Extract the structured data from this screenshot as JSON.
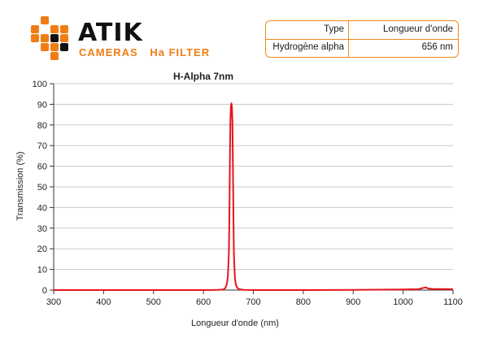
{
  "brand": {
    "name": "ATIK",
    "tagline": "CAMERAS",
    "product": "Ha FILTER",
    "accent_color": "#f07d13",
    "dark_color": "#111111"
  },
  "spec_table": {
    "headers": [
      "Type",
      "Longueur d'onde"
    ],
    "row": [
      "Hydrogène alpha",
      "656 nm"
    ]
  },
  "chart_data": {
    "type": "line",
    "title": "H-Alpha 7nm",
    "xlabel": "Longueur d'onde (nm)",
    "ylabel": "Transmission (%)",
    "xlim": [
      300,
      1100
    ],
    "ylim": [
      0,
      100
    ],
    "xticks": [
      300,
      400,
      500,
      600,
      700,
      800,
      900,
      1000,
      1100
    ],
    "yticks": [
      0,
      10,
      20,
      30,
      40,
      50,
      60,
      70,
      80,
      90,
      100
    ],
    "grid": "horizontal",
    "series": [
      {
        "color": "#e8141b",
        "x": [
          300,
          600,
          630,
          640,
          644,
          647,
          649,
          651,
          652,
          653,
          654,
          655,
          656,
          657,
          658,
          659,
          660,
          661,
          663,
          665,
          668,
          672,
          680,
          700,
          800,
          900,
          950,
          1000,
          1030,
          1040,
          1045,
          1050,
          1060,
          1080,
          1100
        ],
        "y": [
          0,
          0,
          0.1,
          0.3,
          1,
          3,
          7,
          18,
          35,
          62,
          82,
          89,
          90.5,
          89,
          82,
          62,
          38,
          18,
          6,
          2.5,
          1,
          0.4,
          0.1,
          0,
          0,
          0.1,
          0.2,
          0.3,
          0.4,
          1,
          1.3,
          0.8,
          0.5,
          0.5,
          0.4
        ]
      }
    ]
  }
}
